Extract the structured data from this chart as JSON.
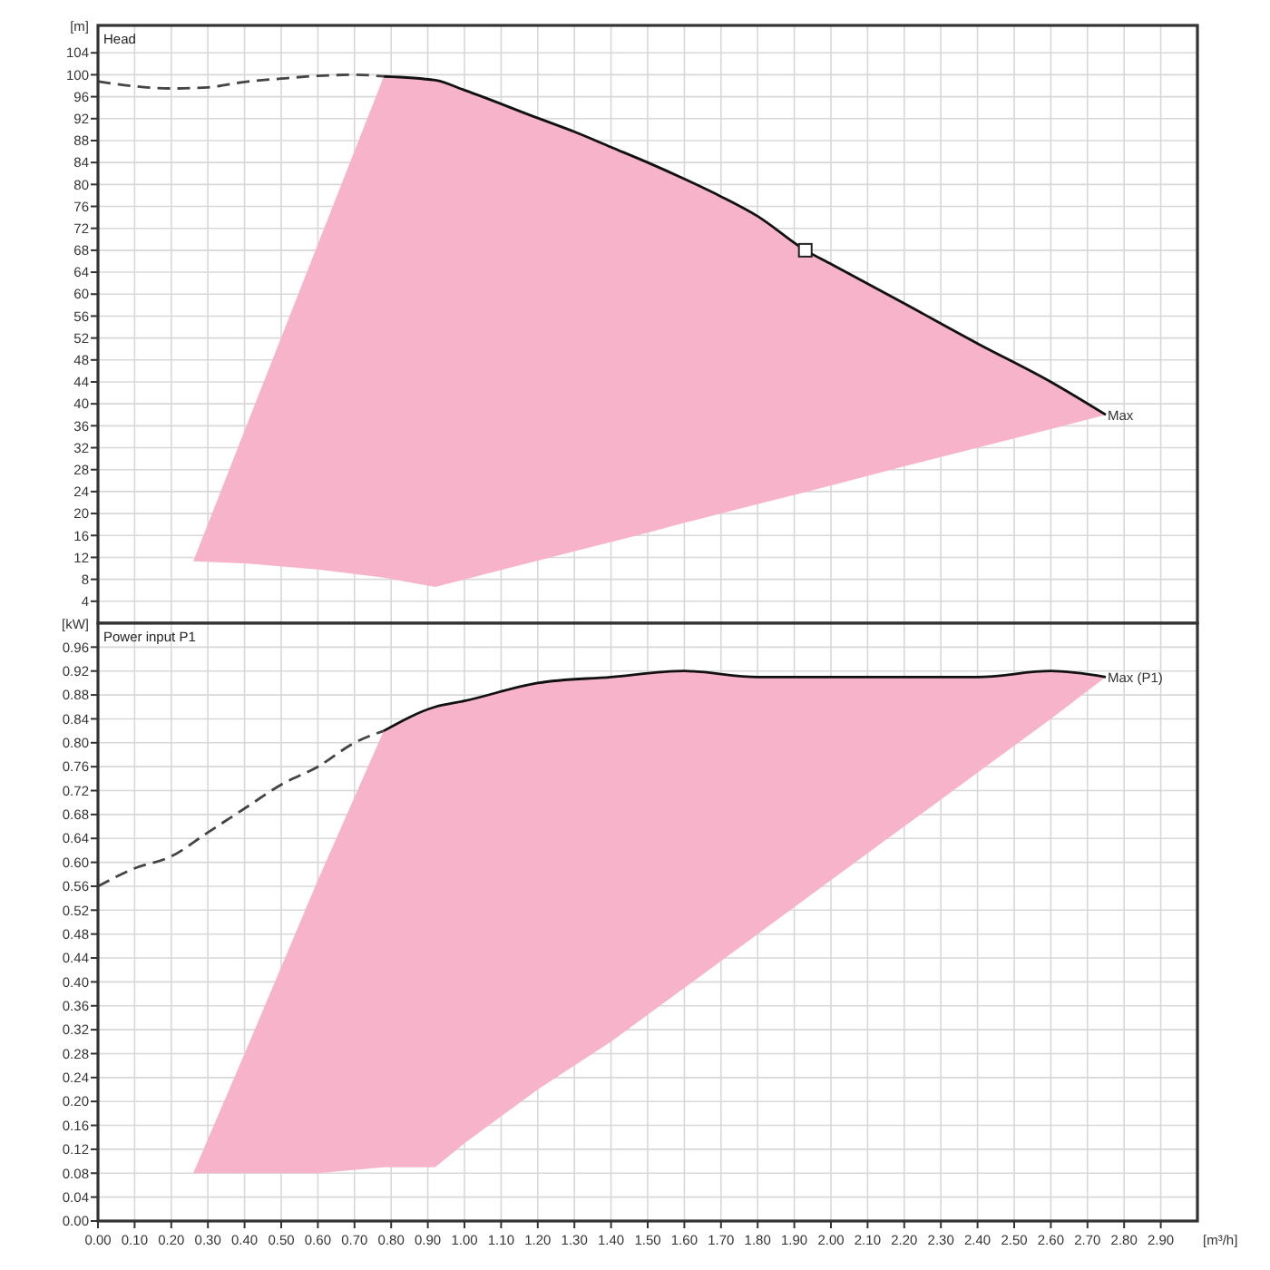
{
  "chart_data": [
    {
      "type": "line",
      "title": "Head",
      "ylabel": "[m]",
      "xlim": [
        0,
        3.0
      ],
      "ylim": [
        0,
        109
      ],
      "xticks": [
        0,
        0.1,
        0.2,
        0.3,
        0.4,
        0.5,
        0.6,
        0.7,
        0.8,
        0.9,
        1.0,
        1.1,
        1.2,
        1.3,
        1.4,
        1.5,
        1.6,
        1.7,
        1.8,
        1.9,
        2.0,
        2.1,
        2.2,
        2.3,
        2.4,
        2.5,
        2.6,
        2.7,
        2.8,
        2.9
      ],
      "yticks": [
        4,
        8,
        12,
        16,
        20,
        24,
        28,
        32,
        36,
        40,
        44,
        48,
        52,
        56,
        60,
        64,
        68,
        72,
        76,
        80,
        84,
        88,
        92,
        96,
        100,
        104
      ],
      "tick_labels": "y",
      "grid": true,
      "series": [
        {
          "color": "#111111",
          "line_style": "solid",
          "x": [
            0.26,
            0.4,
            0.6,
            0.78,
            0.92,
            1.0,
            1.2,
            1.3,
            1.4,
            1.5,
            1.6,
            1.7,
            1.8,
            1.93,
            2.0,
            2.2,
            2.4,
            2.6,
            2.75
          ],
          "values": [
            null,
            null,
            null,
            99.7,
            99.0,
            97.2,
            92.1,
            89.6,
            86.8,
            84,
            81,
            77.8,
            74.2,
            68,
            65.5,
            58.3,
            51,
            44,
            38
          ],
          "upper": [
            11.3,
            35.1,
            69.1,
            99.7,
            99.0,
            97.2,
            92.1,
            89.6,
            86.8,
            84,
            81,
            77.8,
            74.2,
            68,
            65.5,
            58.3,
            51,
            44,
            38
          ],
          "lower": [
            11.3,
            10.9,
            9.8,
            8.3,
            6.6,
            8.0,
            11.4,
            13.1,
            14.8,
            16.5,
            18.3,
            20,
            21.7,
            23.9,
            25.1,
            28.6,
            32.0,
            35.4,
            38
          ]
        },
        {
          "color": "#444444",
          "line_style": "dashed",
          "x": [
            0,
            0.1,
            0.2,
            0.3,
            0.4,
            0.5,
            0.6,
            0.7,
            0.78
          ],
          "values": [
            98.8,
            97.9,
            97.5,
            97.7,
            98.7,
            99.3,
            99.8,
            100,
            99.7
          ]
        },
        {
          "type": "scatter",
          "color": "#222222",
          "marker": "square",
          "x": [
            1.93
          ],
          "values": [
            68
          ]
        }
      ],
      "annotations": [
        {
          "text": "Max",
          "x": 2.75,
          "y": 38
        }
      ]
    },
    {
      "type": "line",
      "title": "Power input P1",
      "ylabel": "[kW]",
      "xlabel": "[m³/h]",
      "xlim": [
        0,
        3.0
      ],
      "ylim": [
        0,
        1.0
      ],
      "xticks": [
        {
          "value": 0,
          "label": "0.00"
        },
        {
          "value": 0.1,
          "label": "0.10"
        },
        {
          "value": 0.2,
          "label": "0.20"
        },
        {
          "value": 0.3,
          "label": "0.30"
        },
        {
          "value": 0.4,
          "label": "0.40"
        },
        {
          "value": 0.5,
          "label": "0.50"
        },
        {
          "value": 0.6,
          "label": "0.60"
        },
        {
          "value": 0.7,
          "label": "0.70"
        },
        {
          "value": 0.8,
          "label": "0.80"
        },
        {
          "value": 0.9,
          "label": "0.90"
        },
        {
          "value": 1.0,
          "label": "1.00"
        },
        {
          "value": 1.1,
          "label": "1.10"
        },
        {
          "value": 1.2,
          "label": "1.20"
        },
        {
          "value": 1.3,
          "label": "1.30"
        },
        {
          "value": 1.4,
          "label": "1.40"
        },
        {
          "value": 1.5,
          "label": "1.50"
        },
        {
          "value": 1.6,
          "label": "1.60"
        },
        {
          "value": 1.7,
          "label": "1.70"
        },
        {
          "value": 1.8,
          "label": "1.80"
        },
        {
          "value": 1.9,
          "label": "1.90"
        },
        {
          "value": 2.0,
          "label": "2.00"
        },
        {
          "value": 2.1,
          "label": "2.10"
        },
        {
          "value": 2.2,
          "label": "2.20"
        },
        {
          "value": 2.3,
          "label": "2.30"
        },
        {
          "value": 2.4,
          "label": "2.40"
        },
        {
          "value": 2.5,
          "label": "2.50"
        },
        {
          "value": 2.6,
          "label": "2.60"
        },
        {
          "value": 2.7,
          "label": "2.70"
        },
        {
          "value": 2.8,
          "label": "2.80"
        },
        {
          "value": 2.9,
          "label": "2.90"
        }
      ],
      "yticks": [
        {
          "value": 0,
          "label": "0.00"
        },
        {
          "value": 0.04,
          "label": "0.04"
        },
        {
          "value": 0.08,
          "label": "0.08"
        },
        {
          "value": 0.12,
          "label": "0.12"
        },
        {
          "value": 0.16,
          "label": "0.16"
        },
        {
          "value": 0.2,
          "label": "0.20"
        },
        {
          "value": 0.24,
          "label": "0.24"
        },
        {
          "value": 0.28,
          "label": "0.28"
        },
        {
          "value": 0.32,
          "label": "0.32"
        },
        {
          "value": 0.36,
          "label": "0.36"
        },
        {
          "value": 0.4,
          "label": "0.40"
        },
        {
          "value": 0.44,
          "label": "0.44"
        },
        {
          "value": 0.48,
          "label": "0.48"
        },
        {
          "value": 0.52,
          "label": "0.52"
        },
        {
          "value": 0.56,
          "label": "0.56"
        },
        {
          "value": 0.6,
          "label": "0.60"
        },
        {
          "value": 0.64,
          "label": "0.64"
        },
        {
          "value": 0.68,
          "label": "0.68"
        },
        {
          "value": 0.72,
          "label": "0.72"
        },
        {
          "value": 0.76,
          "label": "0.76"
        },
        {
          "value": 0.8,
          "label": "0.80"
        },
        {
          "value": 0.84,
          "label": "0.84"
        },
        {
          "value": 0.88,
          "label": "0.88"
        },
        {
          "value": 0.92,
          "label": "0.92"
        },
        {
          "value": 0.96,
          "label": "0.96"
        }
      ],
      "grid": true,
      "series": [
        {
          "color": "#111111",
          "line_style": "solid",
          "x": [
            0.26,
            0.4,
            0.6,
            0.78,
            0.92,
            1.0,
            1.2,
            1.4,
            1.6,
            1.8,
            2.0,
            2.2,
            2.4,
            2.6,
            2.75
          ],
          "values": [
            null,
            null,
            null,
            0.82,
            0.86,
            0.87,
            0.9,
            0.91,
            0.92,
            0.91,
            0.91,
            0.91,
            0.91,
            0.92,
            0.91
          ],
          "upper": [
            0.08,
            0.28,
            0.57,
            0.82,
            0.86,
            0.87,
            0.9,
            0.91,
            0.92,
            0.91,
            0.91,
            0.91,
            0.91,
            0.92,
            0.91
          ],
          "lower": [
            0.08,
            0.08,
            0.08,
            0.09,
            0.09,
            0.13,
            0.22,
            0.3,
            0.39,
            0.48,
            0.57,
            0.66,
            0.75,
            0.84,
            0.91
          ]
        },
        {
          "color": "#444444",
          "line_style": "dashed",
          "x": [
            0,
            0.1,
            0.2,
            0.3,
            0.4,
            0.5,
            0.6,
            0.7,
            0.78
          ],
          "values": [
            0.56,
            0.59,
            0.61,
            0.65,
            0.69,
            0.73,
            0.76,
            0.8,
            0.82
          ]
        }
      ],
      "annotations": [
        {
          "text": "Max (P1)",
          "x": 2.75,
          "y": 0.91
        }
      ]
    }
  ]
}
